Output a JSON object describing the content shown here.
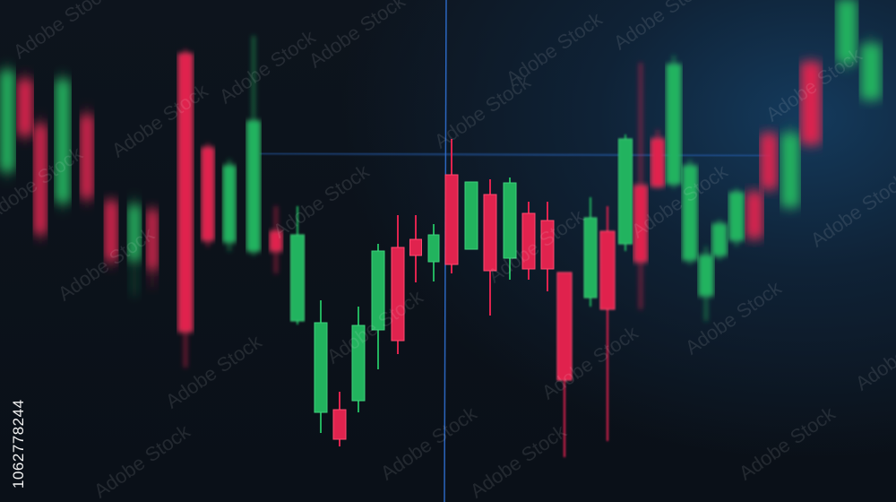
{
  "scene": "candlestick chart on a dark trading screen",
  "colors": {
    "background": "#0a1018",
    "bullish": "#22b35e",
    "bearish": "#e0234e",
    "crosshair": "#2f6fd0"
  },
  "watermark": {
    "text": "Adobe Stock",
    "stock_id": "1062778244"
  }
}
